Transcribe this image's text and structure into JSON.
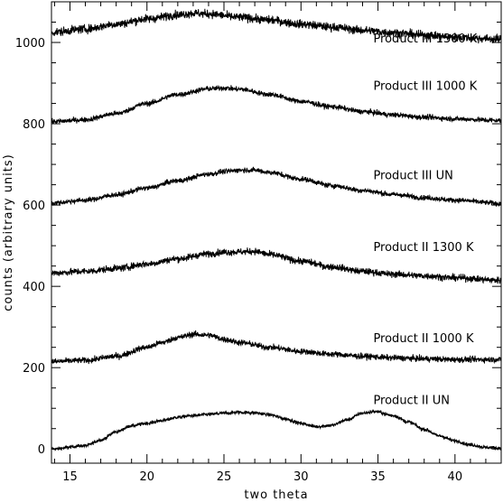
{
  "chart_data": {
    "type": "line",
    "title": "",
    "xlabel": "two theta",
    "ylabel": "counts (arbitrary units)",
    "xlim": [
      13.8,
      43.0
    ],
    "ylim": [
      -35,
      1100
    ],
    "x_ticks": [
      15,
      20,
      25,
      30,
      35,
      40
    ],
    "y_ticks": [
      0,
      200,
      400,
      600,
      800,
      1000
    ],
    "grid": false,
    "legend": "inline labels at right",
    "series": [
      {
        "name": "Product II UN",
        "points": [
          [
            13.8,
            0
          ],
          [
            16,
            8
          ],
          [
            17,
            22
          ],
          [
            18,
            42
          ],
          [
            19,
            57
          ],
          [
            20,
            63
          ],
          [
            21,
            70
          ],
          [
            22,
            78
          ],
          [
            23,
            82
          ],
          [
            24,
            85
          ],
          [
            25,
            88
          ],
          [
            26,
            90
          ],
          [
            27,
            89
          ],
          [
            28,
            84
          ],
          [
            29,
            74
          ],
          [
            30,
            63
          ],
          [
            31,
            55
          ],
          [
            32,
            58
          ],
          [
            33,
            72
          ],
          [
            34,
            88
          ],
          [
            34.8,
            92
          ],
          [
            36,
            82
          ],
          [
            37,
            66
          ],
          [
            38,
            48
          ],
          [
            39,
            32
          ],
          [
            40,
            20
          ],
          [
            41,
            10
          ],
          [
            42,
            4
          ],
          [
            43,
            2
          ]
        ],
        "noise": 4
      },
      {
        "name": "Product II 1000 K",
        "points": [
          [
            13.8,
            215
          ],
          [
            16,
            218
          ],
          [
            18,
            228
          ],
          [
            20,
            250
          ],
          [
            21,
            262
          ],
          [
            22,
            274
          ],
          [
            23,
            282
          ],
          [
            24,
            280
          ],
          [
            25,
            270
          ],
          [
            26,
            262
          ],
          [
            28,
            250
          ],
          [
            30,
            240
          ],
          [
            32,
            233
          ],
          [
            34,
            228
          ],
          [
            36,
            224
          ],
          [
            38,
            222
          ],
          [
            40,
            220
          ],
          [
            43,
            220
          ]
        ],
        "noise": 7
      },
      {
        "name": "Product II 1300 K",
        "points": [
          [
            13.8,
            433
          ],
          [
            16,
            437
          ],
          [
            18,
            444
          ],
          [
            20,
            455
          ],
          [
            22,
            468
          ],
          [
            24,
            480
          ],
          [
            25,
            484
          ],
          [
            26,
            485
          ],
          [
            27,
            486
          ],
          [
            28,
            478
          ],
          [
            30,
            462
          ],
          [
            32,
            448
          ],
          [
            34,
            437
          ],
          [
            36,
            430
          ],
          [
            38,
            426
          ],
          [
            40,
            421
          ],
          [
            43,
            415
          ]
        ],
        "noise": 8
      },
      {
        "name": "Product III UN",
        "points": [
          [
            13.8,
            605
          ],
          [
            16,
            612
          ],
          [
            18,
            625
          ],
          [
            20,
            642
          ],
          [
            22,
            660
          ],
          [
            24,
            676
          ],
          [
            25,
            682
          ],
          [
            26,
            686
          ],
          [
            27,
            686
          ],
          [
            28,
            680
          ],
          [
            30,
            664
          ],
          [
            32,
            648
          ],
          [
            34,
            636
          ],
          [
            36,
            626
          ],
          [
            38,
            618
          ],
          [
            40,
            612
          ],
          [
            43,
            604
          ]
        ],
        "noise": 6
      },
      {
        "name": "Product III 1000 K",
        "points": [
          [
            13.8,
            805
          ],
          [
            16,
            810
          ],
          [
            18,
            825
          ],
          [
            20,
            850
          ],
          [
            22,
            872
          ],
          [
            24,
            886
          ],
          [
            25,
            888
          ],
          [
            26,
            885
          ],
          [
            28,
            872
          ],
          [
            30,
            855
          ],
          [
            32,
            842
          ],
          [
            34,
            830
          ],
          [
            36,
            822
          ],
          [
            38,
            816
          ],
          [
            40,
            812
          ],
          [
            43,
            808
          ]
        ],
        "noise": 6
      },
      {
        "name": "Product III 1300 K",
        "points": [
          [
            13.8,
            1025
          ],
          [
            16,
            1033
          ],
          [
            18,
            1045
          ],
          [
            20,
            1058
          ],
          [
            22,
            1068
          ],
          [
            23,
            1072
          ],
          [
            24,
            1070
          ],
          [
            26,
            1062
          ],
          [
            28,
            1055
          ],
          [
            30,
            1045
          ],
          [
            32,
            1038
          ],
          [
            34,
            1030
          ],
          [
            36,
            1024
          ],
          [
            38,
            1018
          ],
          [
            40,
            1013
          ],
          [
            43,
            1008
          ]
        ],
        "noise": 10
      }
    ],
    "annotations": [
      {
        "text": "Product III 1300 K",
        "x": 34.7,
        "y": 1000
      },
      {
        "text": "Product III 1000 K",
        "x": 34.7,
        "y": 883
      },
      {
        "text": "Product III UN",
        "x": 34.7,
        "y": 663
      },
      {
        "text": "Product II 1300 K",
        "x": 34.7,
        "y": 487
      },
      {
        "text": "Product II 1000 K",
        "x": 34.7,
        "y": 263
      },
      {
        "text": "Product II UN",
        "x": 34.7,
        "y": 110
      }
    ]
  }
}
